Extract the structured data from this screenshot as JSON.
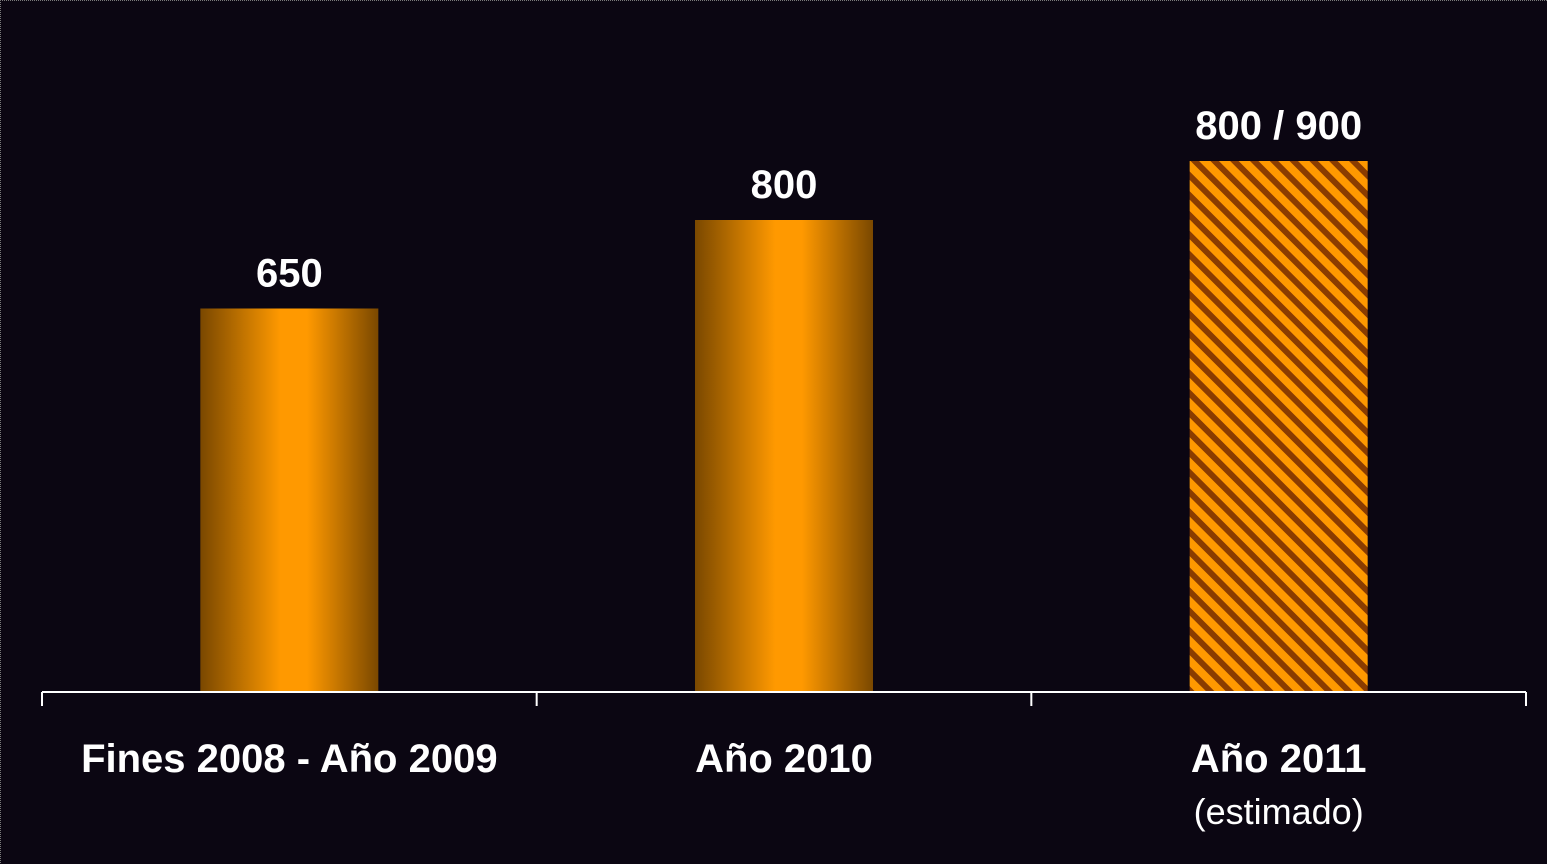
{
  "chart_data": {
    "type": "bar",
    "categories": [
      "Fines 2008 - Año 2009",
      "Año 2010",
      "Año 2011"
    ],
    "category_sublabels": [
      "",
      "",
      "(estimado)"
    ],
    "values": [
      650,
      800,
      900
    ],
    "value_labels": [
      "650",
      "800",
      "800 / 900"
    ],
    "estimated": [
      false,
      false,
      true
    ],
    "ylim": [
      0,
      1000
    ],
    "grid": false,
    "colors": {
      "background": "#0b0612",
      "bar": "#ff9900",
      "bar_dark": "#7a4800",
      "hatch_dark": "#8a3c00",
      "axis": "#ffffff",
      "text": "#ffffff"
    }
  }
}
